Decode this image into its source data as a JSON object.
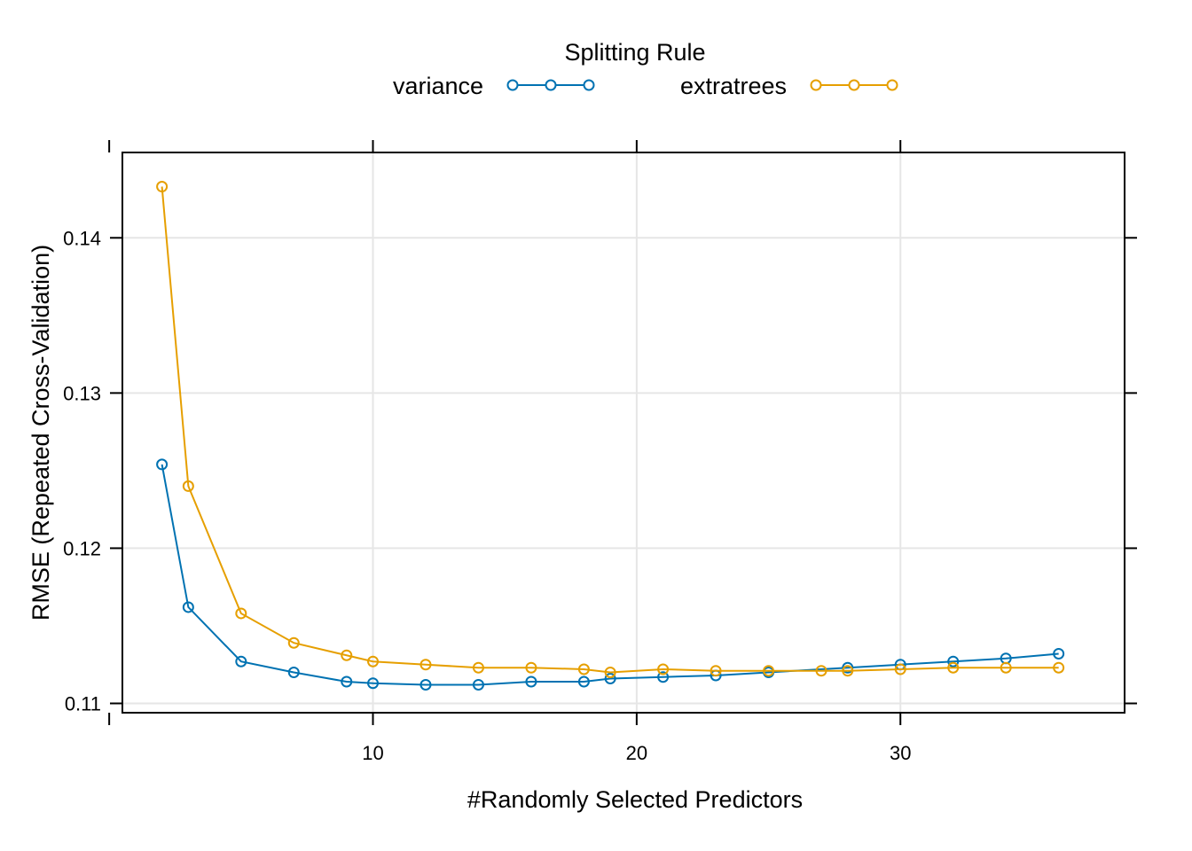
{
  "chart_data": {
    "type": "line",
    "legend": {
      "title": "Splitting Rule",
      "placement": "top"
    },
    "xlabel": "#Randomly Selected Predictors",
    "ylabel": "RMSE (Repeated Cross-Validation)",
    "xlim": [
      0.5,
      38.5
    ],
    "ylim": [
      0.1094,
      0.1455
    ],
    "xticks": [
      10,
      20,
      30
    ],
    "yticks": [
      0.11,
      0.12,
      0.13,
      0.14
    ],
    "xtick_labels": [
      "10",
      "20",
      "30"
    ],
    "ytick_labels": [
      "0.11",
      "0.12",
      "0.13",
      "0.14"
    ],
    "grid": true,
    "series": [
      {
        "name": "variance",
        "color": "#0072B2",
        "x": [
          2,
          3,
          5,
          7,
          9,
          10,
          12,
          14,
          16,
          18,
          19,
          21,
          23,
          25,
          28,
          30,
          32,
          34,
          36
        ],
        "y": [
          0.1254,
          0.1162,
          0.1127,
          0.112,
          0.1114,
          0.1113,
          0.1112,
          0.1112,
          0.1114,
          0.1114,
          0.1116,
          0.1117,
          0.1118,
          0.112,
          0.1123,
          0.1125,
          0.1127,
          0.1129,
          0.1132
        ]
      },
      {
        "name": "extratrees",
        "color": "#E69F00",
        "x": [
          2,
          3,
          5,
          7,
          9,
          10,
          12,
          14,
          16,
          18,
          19,
          21,
          23,
          25,
          27,
          28,
          30,
          32,
          34,
          36
        ],
        "y": [
          0.1433,
          0.124,
          0.1158,
          0.1139,
          0.1131,
          0.1127,
          0.1125,
          0.1123,
          0.1123,
          0.1122,
          0.112,
          0.1122,
          0.1121,
          0.1121,
          0.1121,
          0.1121,
          0.1122,
          0.1123,
          0.1123,
          0.1123
        ]
      }
    ]
  }
}
